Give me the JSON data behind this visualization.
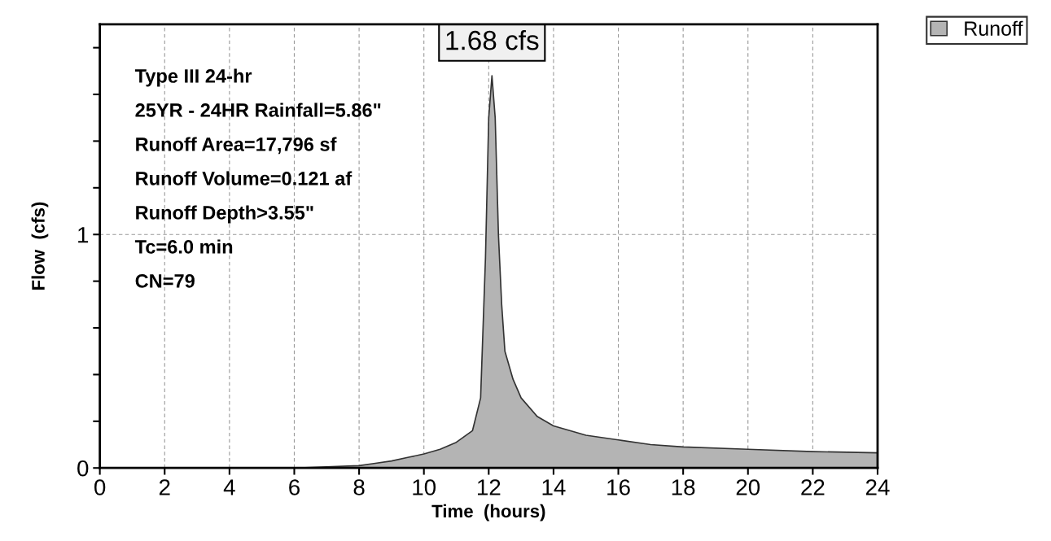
{
  "chart_data": {
    "type": "area",
    "xlabel": "Time  (hours)",
    "ylabel": "Flow  (cfs)",
    "x": [
      0,
      2,
      4,
      6,
      7,
      8,
      8.5,
      9,
      9.5,
      10,
      10.5,
      11,
      11.5,
      11.75,
      11.9,
      12,
      12.1,
      12.2,
      12.3,
      12.4,
      12.5,
      12.75,
      13,
      13.5,
      14,
      15,
      16,
      17,
      18,
      20,
      22,
      24
    ],
    "series": [
      {
        "name": "Runoff",
        "color": "#b4b4b4",
        "values": [
          0,
          0,
          0,
          0,
          0.005,
          0.01,
          0.02,
          0.03,
          0.045,
          0.06,
          0.08,
          0.11,
          0.16,
          0.3,
          0.9,
          1.5,
          1.68,
          1.5,
          1.0,
          0.7,
          0.5,
          0.38,
          0.3,
          0.22,
          0.18,
          0.14,
          0.12,
          0.1,
          0.09,
          0.08,
          0.07,
          0.065
        ]
      }
    ],
    "xlim": [
      0,
      24
    ],
    "xticks": [
      0,
      2,
      4,
      6,
      8,
      10,
      12,
      14,
      16,
      18,
      20,
      22,
      24
    ],
    "ylim": [
      0,
      1.9
    ],
    "yticks": [
      0,
      {
        "value": 0.2,
        "label": null
      },
      {
        "value": 0.4,
        "label": null
      },
      {
        "value": 0.6,
        "label": null
      },
      {
        "value": 0.8,
        "label": null
      },
      1,
      {
        "value": 1.2,
        "label": null
      },
      {
        "value": 1.4,
        "label": null
      },
      {
        "value": 1.6,
        "label": null
      },
      {
        "value": 1.8,
        "label": null
      }
    ],
    "grid": true,
    "legend": "top right",
    "annotations": [
      {
        "text": "1.68 cfs",
        "x": 12.1,
        "y": 1.68
      },
      "Type III 24-hr",
      "25YR - 24HR Rainfall=5.86\"",
      "Runoff Area=17,796 sf",
      "Runoff Volume=0.121 af",
      "Runoff Depth>3.55\"",
      "Tc=6.0 min",
      "CN=79"
    ]
  }
}
